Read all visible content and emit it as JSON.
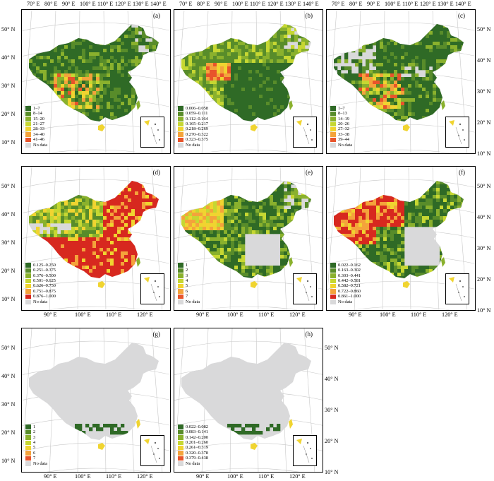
{
  "top_lon_labels": [
    "70° E",
    "80° E",
    "90° E",
    "100° E",
    "110° E",
    "120° E",
    "130° E",
    "140° E"
  ],
  "bottom_lon_labels": [
    "90° E",
    "100° E",
    "110° E",
    "120° E"
  ],
  "lat_labels": [
    "50° N",
    "40° N",
    "30° N",
    "20° N",
    "10° N"
  ],
  "nodata_label": "No data",
  "nodata_color": "#d9d9da",
  "colors": [
    "#2f6a26",
    "#588c2a",
    "#8ab12d",
    "#c6d732",
    "#f0d430",
    "#f4a33b",
    "#e8542b",
    "#d7281f"
  ],
  "panels": [
    {
      "id": "a",
      "label": "(a)",
      "legend": [
        "1–7",
        "8–14",
        "15–20",
        "21–27",
        "28–33",
        "34–40",
        "41–46"
      ],
      "palette": [
        0,
        1,
        2,
        3,
        4,
        5,
        6
      ],
      "pattern": "a"
    },
    {
      "id": "b",
      "label": "(b)",
      "legend": [
        "0.006–0.058",
        "0.059–0.111",
        "0.112–0.164",
        "0.165–0.217",
        "0.218–0.269",
        "0.270–0.322",
        "0.323–0.375"
      ],
      "palette": [
        0,
        1,
        2,
        3,
        4,
        5,
        6
      ],
      "pattern": "b"
    },
    {
      "id": "c",
      "label": "(c)",
      "legend": [
        "1–7",
        "8–13",
        "14–19",
        "20–26",
        "27–32",
        "33–38",
        "39–44"
      ],
      "palette": [
        0,
        1,
        2,
        3,
        4,
        5,
        6
      ],
      "pattern": "c"
    },
    {
      "id": "d",
      "label": "(d)",
      "legend": [
        "0.125–0.250",
        "0.251–0.375",
        "0.376–0.500",
        "0.501–0.625",
        "0.626–0.750",
        "0.751–0.875",
        "0.876–1.000"
      ],
      "palette": [
        0,
        1,
        2,
        3,
        4,
        5,
        7
      ],
      "pattern": "d"
    },
    {
      "id": "e",
      "label": "(e)",
      "legend": [
        "1",
        "2",
        "3",
        "4",
        "5",
        "6",
        "7"
      ],
      "palette": [
        0,
        1,
        2,
        3,
        4,
        5,
        6
      ],
      "pattern": "e"
    },
    {
      "id": "f",
      "label": "(f)",
      "legend": [
        "0.022–0.162",
        "0.163–0.302",
        "0.303–0.441",
        "0.442–0.581",
        "0.582–0.721",
        "0.722–0.860",
        "0.861–1.000"
      ],
      "palette": [
        0,
        1,
        2,
        3,
        4,
        5,
        7
      ],
      "pattern": "f"
    },
    {
      "id": "g",
      "label": "(g)",
      "legend": [
        "1",
        "2",
        "3",
        "4",
        "5",
        "6",
        "7"
      ],
      "palette": [
        0,
        1,
        2,
        3,
        4,
        5,
        6
      ],
      "pattern": "g"
    },
    {
      "id": "h",
      "label": "(h)",
      "legend": [
        "0.022–0.082",
        "0.083–0.141",
        "0.142–0.200",
        "0.201–0.260",
        "0.261–0.319",
        "0.320–0.378",
        "0.379–0.438"
      ],
      "palette": [
        0,
        1,
        2,
        3,
        4,
        5,
        6
      ],
      "pattern": "h"
    }
  ]
}
